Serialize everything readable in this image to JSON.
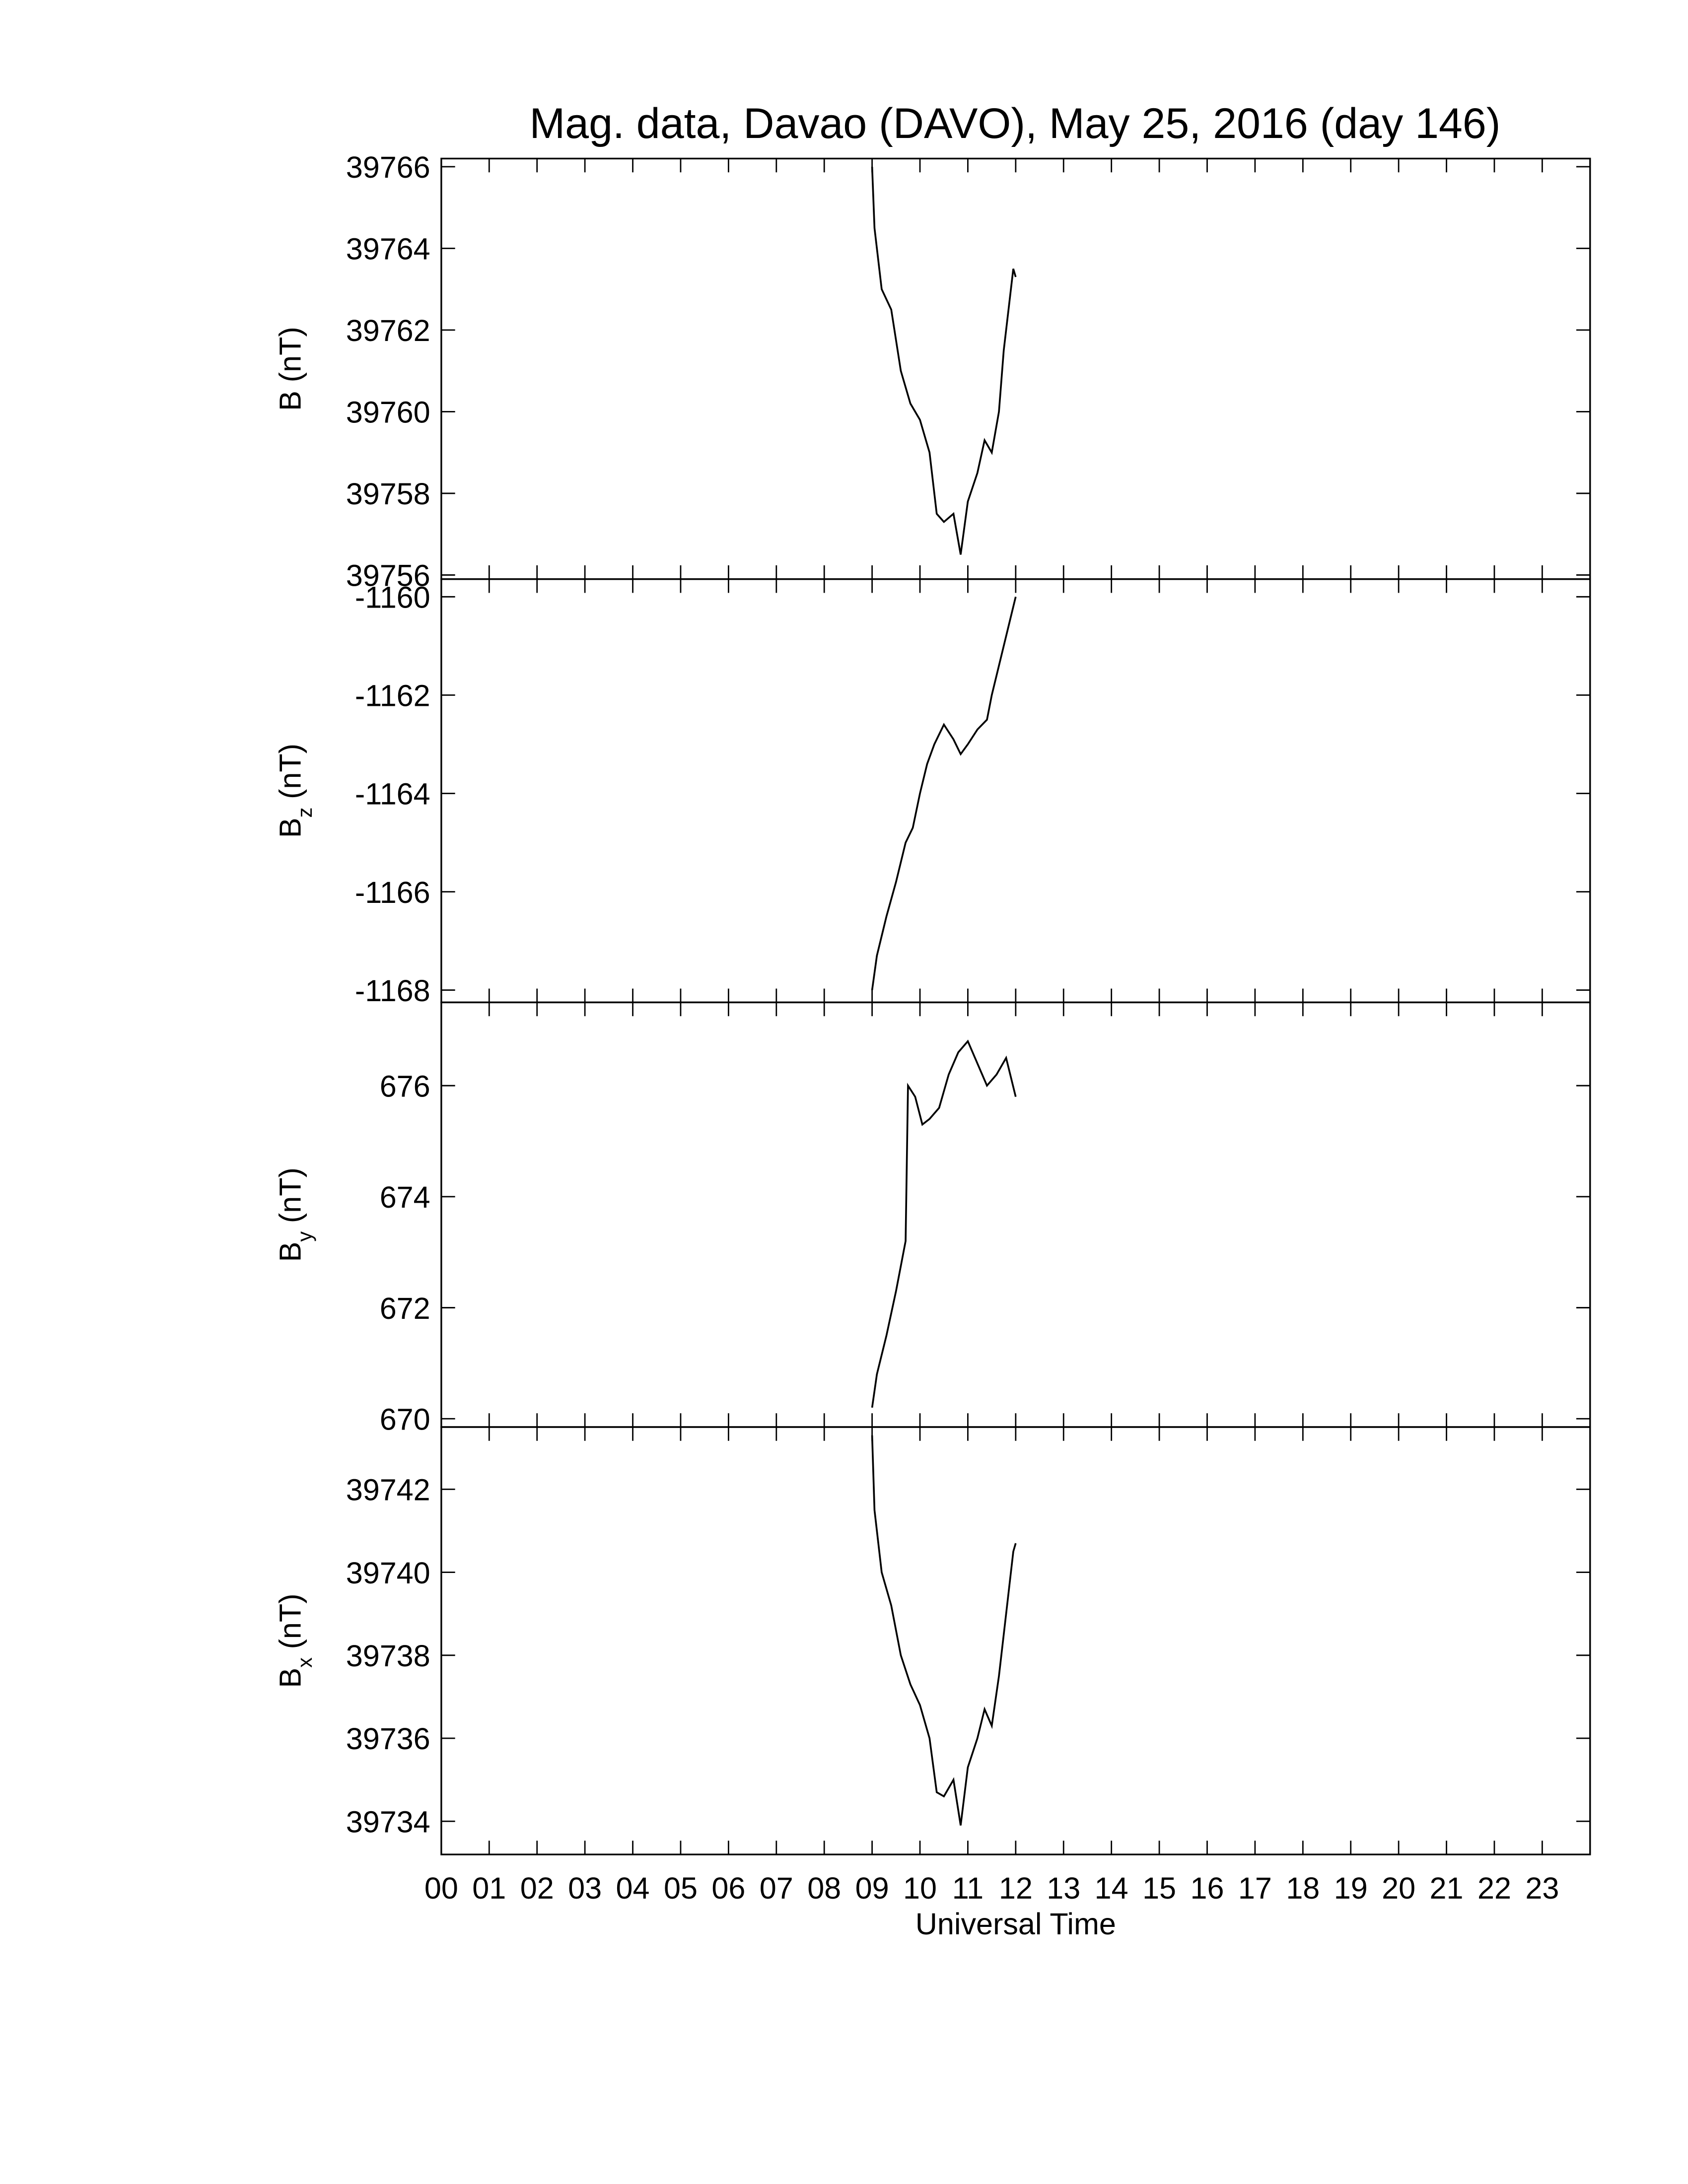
{
  "chart_data": [
    {
      "type": "line",
      "title": "Mag. data, Davao (DAVO), May 25, 2016 (day 146)",
      "ylabel": "B (nT)",
      "ylim": [
        39755.9,
        39766.2
      ],
      "yticks": [
        39756,
        39758,
        39760,
        39762,
        39764,
        39766
      ],
      "series": [
        {
          "color": "#000000",
          "x": [
            9.0,
            9.05,
            9.2,
            9.4,
            9.6,
            9.8,
            10.0,
            10.2,
            10.35,
            10.5,
            10.7,
            10.85,
            11.0,
            11.2,
            11.35,
            11.5,
            11.65,
            11.75,
            11.85,
            11.95,
            12.0
          ],
          "values": [
            39766,
            39764.5,
            39763,
            39762.5,
            39761,
            39760.2,
            39759.8,
            39759,
            39757.5,
            39757.3,
            39757.5,
            39756.5,
            39757.8,
            39758.5,
            39759.3,
            39759,
            39760,
            39761.5,
            39762.5,
            39763.5,
            39763.3
          ]
        }
      ]
    },
    {
      "type": "line",
      "ylabel": "B",
      "ylabel_sub": "z",
      "ylabel_unit": "(nT)",
      "ylim": [
        -1168.25,
        -1159.64
      ],
      "yticks": [
        -1168,
        -1166,
        -1164,
        -1162,
        -1160
      ],
      "series": [
        {
          "color": "#000000",
          "x": [
            9.0,
            9.1,
            9.3,
            9.5,
            9.7,
            9.85,
            10.0,
            10.15,
            10.3,
            10.5,
            10.7,
            10.85,
            11.0,
            11.2,
            11.4,
            11.5,
            11.7,
            11.9,
            12.0
          ],
          "values": [
            -1168,
            -1167.3,
            -1166.5,
            -1165.8,
            -1165,
            -1164.7,
            -1164,
            -1163.4,
            -1163,
            -1162.6,
            -1162.9,
            -1163.2,
            -1163,
            -1162.7,
            -1162.5,
            -1162,
            -1161.2,
            -1160.4,
            -1160
          ]
        }
      ]
    },
    {
      "type": "line",
      "ylabel": "B",
      "ylabel_sub": "y",
      "ylabel_unit": "(nT)",
      "ylim": [
        669.85,
        677.5
      ],
      "yticks": [
        670,
        672,
        674,
        676
      ],
      "series": [
        {
          "color": "#000000",
          "x": [
            9.0,
            9.1,
            9.3,
            9.5,
            9.7,
            9.75,
            9.9,
            10.05,
            10.2,
            10.4,
            10.6,
            10.8,
            11.0,
            11.2,
            11.4,
            11.6,
            11.8,
            12.0
          ],
          "values": [
            670.2,
            670.8,
            671.5,
            672.3,
            673.2,
            676,
            675.8,
            675.3,
            675.4,
            675.6,
            676.2,
            676.6,
            676.8,
            676.4,
            676,
            676.2,
            676.5,
            675.8
          ]
        }
      ]
    },
    {
      "type": "line",
      "ylabel": "B",
      "ylabel_sub": "x",
      "ylabel_unit": "(nT)",
      "xlabel": "Universal Time",
      "xlim": [
        0,
        24
      ],
      "xticks": [
        {
          "value": 0,
          "label": "00"
        },
        {
          "value": 1,
          "label": "01"
        },
        {
          "value": 2,
          "label": "02"
        },
        {
          "value": 3,
          "label": "03"
        },
        {
          "value": 4,
          "label": "04"
        },
        {
          "value": 5,
          "label": "05"
        },
        {
          "value": 6,
          "label": "06"
        },
        {
          "value": 7,
          "label": "07"
        },
        {
          "value": 8,
          "label": "08"
        },
        {
          "value": 9,
          "label": "09"
        },
        10,
        11,
        12,
        13,
        14,
        15,
        16,
        17,
        18,
        19,
        20,
        21,
        22,
        23
      ],
      "ylim": [
        39733.2,
        39743.5
      ],
      "yticks": [
        39734,
        39736,
        39738,
        39740,
        39742
      ],
      "series": [
        {
          "color": "#000000",
          "x": [
            9.0,
            9.05,
            9.2,
            9.4,
            9.6,
            9.8,
            10.0,
            10.2,
            10.35,
            10.5,
            10.7,
            10.85,
            11.0,
            11.2,
            11.35,
            11.5,
            11.65,
            11.75,
            11.85,
            11.95,
            12.0
          ],
          "values": [
            39743.3,
            39741.5,
            39740,
            39739.2,
            39738,
            39737.3,
            39736.8,
            39736,
            39734.7,
            39734.6,
            39735,
            39733.9,
            39735.3,
            39736,
            39736.7,
            39736.3,
            39737.5,
            39738.5,
            39739.5,
            39740.5,
            39740.7
          ]
        }
      ]
    }
  ]
}
